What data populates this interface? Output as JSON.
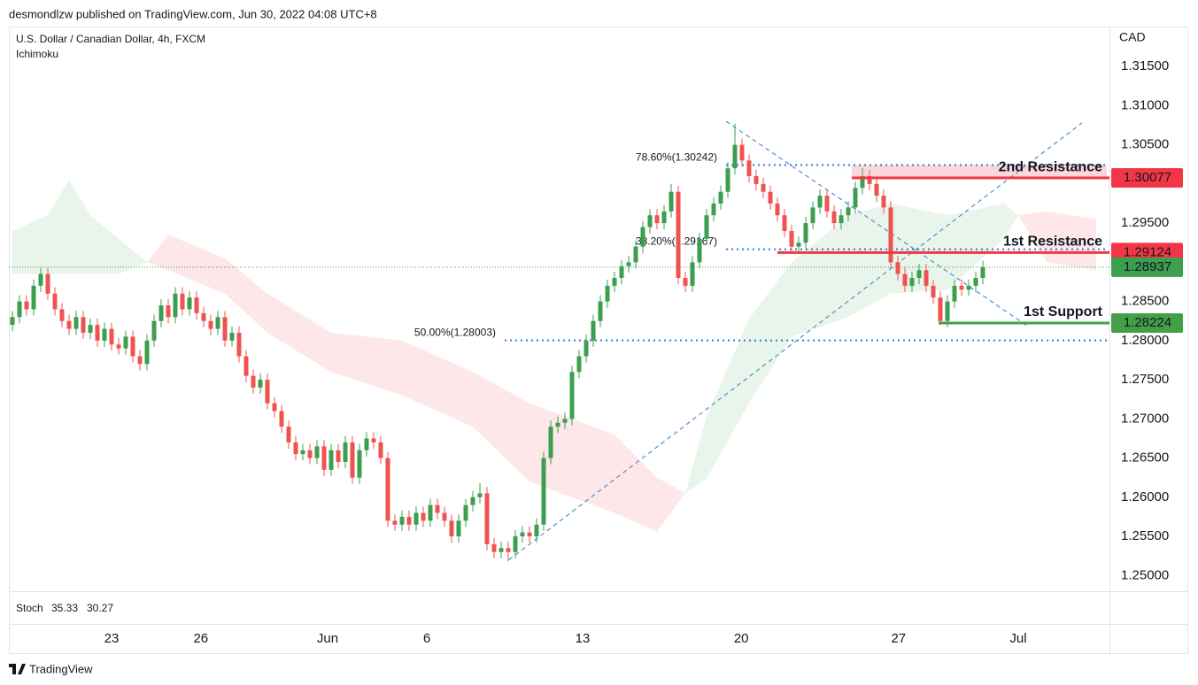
{
  "chart_data": {
    "type": "candlestick",
    "publisher": "desmondlzw published on TradingView.com, Jun 30, 2022 04:08 UTC+8",
    "title": "U.S. Dollar / Canadian Dollar, 4h, FXCM",
    "indicator": "Ichimoku",
    "currency": "CAD",
    "stoch": {
      "label": "Stoch",
      "k": 35.33,
      "d": 30.27,
      "k_color": "#2962ff",
      "d_color": "#ff6d00"
    },
    "brand": "TradingView",
    "up_color": "#3c9e4f",
    "down_color": "#ef5350",
    "grid": false,
    "ylim": [
      1.248,
      1.3201
    ],
    "yticks": [
      {
        "value": 1.25,
        "label": "1.25000"
      },
      {
        "value": 1.255,
        "label": "1.25500"
      },
      {
        "value": 1.26,
        "label": "1.26000"
      },
      {
        "value": 1.265,
        "label": "1.26500"
      },
      {
        "value": 1.27,
        "label": "1.27000"
      },
      {
        "value": 1.275,
        "label": "1.27500"
      },
      {
        "value": 1.28,
        "label": "1.28000"
      },
      {
        "value": 1.285,
        "label": "1.28500"
      },
      {
        "value": 1.29,
        "label": "1.29000"
      },
      {
        "value": 1.295,
        "label": "1.29500"
      },
      {
        "value": 1.3,
        "label": "1.30000"
      },
      {
        "value": 1.305,
        "label": "1.30500"
      },
      {
        "value": 1.31,
        "label": "1.31000"
      },
      {
        "value": 1.315,
        "label": "1.31500"
      }
    ],
    "xticks": [
      {
        "value": 14,
        "label": "23"
      },
      {
        "value": 26.6,
        "label": "26"
      },
      {
        "value": 44.5,
        "label": "Jun"
      },
      {
        "value": 58.5,
        "label": "6"
      },
      {
        "value": 80.5,
        "label": "13"
      },
      {
        "value": 102.9,
        "label": "20"
      },
      {
        "value": 125.1,
        "label": "27"
      },
      {
        "value": 142,
        "label": "Jul"
      }
    ],
    "ohlc": [
      [
        1.282,
        1.2838,
        1.2812,
        1.283
      ],
      [
        1.283,
        1.2858,
        1.2822,
        1.285
      ],
      [
        1.285,
        1.2858,
        1.2832,
        1.284
      ],
      [
        1.284,
        1.2878,
        1.2832,
        1.287
      ],
      [
        1.287,
        1.2893,
        1.2862,
        1.2885
      ],
      [
        1.2885,
        1.2893,
        1.2852,
        1.286
      ],
      [
        1.286,
        1.2868,
        1.2832,
        1.284
      ],
      [
        1.284,
        1.2848,
        1.2817,
        1.2825
      ],
      [
        1.2825,
        1.2833,
        1.2807,
        1.2815
      ],
      [
        1.2815,
        1.2838,
        1.2807,
        1.283
      ],
      [
        1.283,
        1.2838,
        1.2802,
        1.281
      ],
      [
        1.281,
        1.2828,
        1.2802,
        1.282
      ],
      [
        1.282,
        1.2828,
        1.2792,
        1.28
      ],
      [
        1.28,
        1.2823,
        1.2792,
        1.2815
      ],
      [
        1.2815,
        1.2823,
        1.2787,
        1.2795
      ],
      [
        1.2795,
        1.2803,
        1.2782,
        1.279
      ],
      [
        1.279,
        1.2813,
        1.2782,
        1.2805
      ],
      [
        1.2805,
        1.2813,
        1.2772,
        1.278
      ],
      [
        1.278,
        1.2788,
        1.2762,
        1.277
      ],
      [
        1.277,
        1.2808,
        1.2762,
        1.28
      ],
      [
        1.28,
        1.2833,
        1.2792,
        1.2825
      ],
      [
        1.2825,
        1.2853,
        1.2817,
        1.2845
      ],
      [
        1.2845,
        1.2853,
        1.2822,
        1.283
      ],
      [
        1.283,
        1.2868,
        1.2822,
        1.286
      ],
      [
        1.286,
        1.2868,
        1.2832,
        1.284
      ],
      [
        1.284,
        1.2863,
        1.2832,
        1.2855
      ],
      [
        1.2855,
        1.2863,
        1.2827,
        1.2835
      ],
      [
        1.2835,
        1.2843,
        1.2817,
        1.2825
      ],
      [
        1.2825,
        1.2833,
        1.2807,
        1.2815
      ],
      [
        1.2815,
        1.2838,
        1.2807,
        1.283
      ],
      [
        1.283,
        1.2838,
        1.2792,
        1.28
      ],
      [
        1.28,
        1.2818,
        1.2792,
        1.281
      ],
      [
        1.281,
        1.2818,
        1.2772,
        1.278
      ],
      [
        1.278,
        1.2788,
        1.2747,
        1.2755
      ],
      [
        1.2755,
        1.2763,
        1.2732,
        1.274
      ],
      [
        1.274,
        1.2758,
        1.2732,
        1.275
      ],
      [
        1.275,
        1.2758,
        1.2712,
        1.272
      ],
      [
        1.272,
        1.2728,
        1.2702,
        1.271
      ],
      [
        1.271,
        1.2718,
        1.2682,
        1.269
      ],
      [
        1.269,
        1.2698,
        1.2662,
        1.267
      ],
      [
        1.267,
        1.2678,
        1.2647,
        1.2655
      ],
      [
        1.2655,
        1.2668,
        1.2647,
        1.266
      ],
      [
        1.266,
        1.2668,
        1.2642,
        1.265
      ],
      [
        1.265,
        1.2673,
        1.2642,
        1.2665
      ],
      [
        1.2665,
        1.2673,
        1.2627,
        1.2635
      ],
      [
        1.2635,
        1.2668,
        1.2627,
        1.266
      ],
      [
        1.266,
        1.2668,
        1.2637,
        1.2645
      ],
      [
        1.2645,
        1.2678,
        1.2637,
        1.267
      ],
      [
        1.267,
        1.2678,
        1.2617,
        1.2625
      ],
      [
        1.2625,
        1.2668,
        1.2617,
        1.266
      ],
      [
        1.266,
        1.2683,
        1.2652,
        1.2675
      ],
      [
        1.2675,
        1.2683,
        1.2662,
        1.267
      ],
      [
        1.267,
        1.2678,
        1.2642,
        1.265
      ],
      [
        1.265,
        1.2658,
        1.2562,
        1.257
      ],
      [
        1.257,
        1.2578,
        1.2557,
        1.2565
      ],
      [
        1.2565,
        1.2583,
        1.2557,
        1.2575
      ],
      [
        1.2575,
        1.2583,
        1.2557,
        1.2565
      ],
      [
        1.2565,
        1.2588,
        1.2557,
        1.258
      ],
      [
        1.258,
        1.2588,
        1.2562,
        1.257
      ],
      [
        1.257,
        1.2598,
        1.2562,
        1.259
      ],
      [
        1.259,
        1.2598,
        1.2572,
        1.258
      ],
      [
        1.258,
        1.2588,
        1.2562,
        1.257
      ],
      [
        1.257,
        1.2578,
        1.2542,
        1.255
      ],
      [
        1.255,
        1.2578,
        1.2542,
        1.257
      ],
      [
        1.257,
        1.2598,
        1.2562,
        1.259
      ],
      [
        1.259,
        1.2608,
        1.2582,
        1.26
      ],
      [
        1.26,
        1.2618,
        1.2592,
        1.2605
      ],
      [
        1.2605,
        1.2613,
        1.2532,
        1.254
      ],
      [
        1.254,
        1.2548,
        1.2522,
        1.253
      ],
      [
        1.253,
        1.2543,
        1.2522,
        1.2535
      ],
      [
        1.2535,
        1.2543,
        1.2518,
        1.253
      ],
      [
        1.253,
        1.2558,
        1.2522,
        1.255
      ],
      [
        1.255,
        1.2563,
        1.2542,
        1.2555
      ],
      [
        1.2555,
        1.2563,
        1.2542,
        1.255
      ],
      [
        1.255,
        1.2573,
        1.2542,
        1.2565
      ],
      [
        1.2565,
        1.2658,
        1.2557,
        1.265
      ],
      [
        1.265,
        1.2698,
        1.2642,
        1.269
      ],
      [
        1.269,
        1.2703,
        1.2682,
        1.2695
      ],
      [
        1.2695,
        1.2708,
        1.2687,
        1.27
      ],
      [
        1.27,
        1.2768,
        1.2692,
        1.276
      ],
      [
        1.276,
        1.2788,
        1.2752,
        1.278
      ],
      [
        1.278,
        1.2808,
        1.2772,
        1.28
      ],
      [
        1.28,
        1.2833,
        1.2792,
        1.2825
      ],
      [
        1.2825,
        1.2858,
        1.2817,
        1.285
      ],
      [
        1.285,
        1.2878,
        1.2842,
        1.287
      ],
      [
        1.287,
        1.2888,
        1.2862,
        1.288
      ],
      [
        1.288,
        1.2903,
        1.2872,
        1.2895
      ],
      [
        1.2895,
        1.2908,
        1.2887,
        1.29
      ],
      [
        1.29,
        1.2928,
        1.2892,
        1.292
      ],
      [
        1.292,
        1.2953,
        1.2912,
        1.2945
      ],
      [
        1.2945,
        1.2968,
        1.2937,
        1.296
      ],
      [
        1.296,
        1.2968,
        1.2942,
        1.295
      ],
      [
        1.295,
        1.2973,
        1.2942,
        1.2965
      ],
      [
        1.2965,
        1.3,
        1.2957,
        1.299
      ],
      [
        1.299,
        1.2998,
        1.2872,
        1.288
      ],
      [
        1.288,
        1.2888,
        1.2862,
        1.287
      ],
      [
        1.287,
        1.2908,
        1.2862,
        1.29
      ],
      [
        1.29,
        1.2938,
        1.2892,
        1.293
      ],
      [
        1.293,
        1.2968,
        1.2922,
        1.296
      ],
      [
        1.296,
        1.2983,
        1.2952,
        1.2975
      ],
      [
        1.2975,
        1.2998,
        1.2967,
        1.299
      ],
      [
        1.299,
        1.3028,
        1.2982,
        1.302
      ],
      [
        1.302,
        1.3077,
        1.3012,
        1.305
      ],
      [
        1.305,
        1.3058,
        1.3022,
        1.303
      ],
      [
        1.303,
        1.3038,
        1.3002,
        1.301
      ],
      [
        1.301,
        1.3018,
        1.2992,
        1.3
      ],
      [
        1.3,
        1.3008,
        1.2982,
        1.299
      ],
      [
        1.299,
        1.2998,
        1.2967,
        1.2975
      ],
      [
        1.2975,
        1.2983,
        1.2952,
        1.296
      ],
      [
        1.296,
        1.2968,
        1.2932,
        1.294
      ],
      [
        1.294,
        1.2948,
        1.2912,
        1.292
      ],
      [
        1.292,
        1.2933,
        1.2912,
        1.2925
      ],
      [
        1.2925,
        1.2958,
        1.2917,
        1.295
      ],
      [
        1.295,
        1.2978,
        1.2942,
        1.297
      ],
      [
        1.297,
        1.2993,
        1.2962,
        1.2985
      ],
      [
        1.2985,
        1.2993,
        1.2957,
        1.2965
      ],
      [
        1.2965,
        1.2973,
        1.2942,
        1.295
      ],
      [
        1.295,
        1.2968,
        1.2942,
        1.296
      ],
      [
        1.296,
        1.2978,
        1.2952,
        1.297
      ],
      [
        1.297,
        1.3003,
        1.2962,
        1.2995
      ],
      [
        1.2995,
        1.302,
        1.2987,
        1.301
      ],
      [
        1.301,
        1.3018,
        1.2992,
        1.3
      ],
      [
        1.3,
        1.3008,
        1.2977,
        1.2985
      ],
      [
        1.2985,
        1.2993,
        1.2962,
        1.297
      ],
      [
        1.297,
        1.2978,
        1.2892,
        1.29
      ],
      [
        1.29,
        1.2908,
        1.2877,
        1.2885
      ],
      [
        1.2885,
        1.2893,
        1.2862,
        1.287
      ],
      [
        1.287,
        1.2888,
        1.2862,
        1.288
      ],
      [
        1.288,
        1.2898,
        1.2872,
        1.289
      ],
      [
        1.289,
        1.2898,
        1.2862,
        1.287
      ],
      [
        1.287,
        1.2878,
        1.2847,
        1.2855
      ],
      [
        1.2855,
        1.2863,
        1.282,
        1.2825
      ],
      [
        1.2825,
        1.2858,
        1.2817,
        1.285
      ],
      [
        1.285,
        1.2878,
        1.2842,
        1.287
      ],
      [
        1.287,
        1.2878,
        1.2857,
        1.2865
      ],
      [
        1.2865,
        1.2878,
        1.2857,
        1.287
      ],
      [
        1.287,
        1.2888,
        1.2862,
        1.288
      ],
      [
        1.288,
        1.2902,
        1.2872,
        1.28937
      ]
    ],
    "last_label": "1.28937",
    "cloud": {
      "up_color": "rgba(76,175,80,0.12)",
      "down_color": "rgba(242,54,69,0.12)",
      "x": [
        0,
        5,
        8,
        11,
        15,
        19,
        22,
        30,
        36,
        45,
        55,
        65,
        73,
        85,
        91,
        95,
        98,
        104,
        110,
        118,
        124,
        132,
        140,
        142,
        146,
        153
      ],
      "span_a": [
        1.294,
        1.296,
        1.3005,
        1.296,
        1.293,
        1.29,
        1.289,
        1.286,
        1.281,
        1.276,
        1.273,
        1.269,
        1.262,
        1.258,
        1.2556,
        1.2605,
        1.2703,
        1.2828,
        1.29,
        1.296,
        1.2975,
        1.296,
        1.2975,
        1.296,
        1.29,
        1.289
      ],
      "span_b": [
        1.2885,
        1.2885,
        1.2885,
        1.2885,
        1.2885,
        1.29,
        1.2935,
        1.2905,
        1.286,
        1.281,
        1.28,
        1.276,
        1.272,
        1.268,
        1.2625,
        1.2605,
        1.2624,
        1.272,
        1.2805,
        1.283,
        1.286,
        1.2865,
        1.293,
        1.296,
        1.2965,
        1.2955
      ]
    },
    "fib": [
      {
        "label": "78.60%(1.30242)",
        "value": 1.30242,
        "start": 100.75
      },
      {
        "label": "38.20%(1.29167)",
        "value": 1.29167,
        "start": 100.75
      },
      {
        "label": "50.00%(1.28003)",
        "value": 1.28003,
        "start": 69.5
      }
    ],
    "fib_color": "#2a7fd4",
    "zone_color": "rgba(242,54,69,0.2)",
    "levels": [
      {
        "label": "2nd Resistance",
        "value": 1.30077,
        "value_label": "1.30077",
        "color": "#f23645",
        "start": 118.5
      },
      {
        "label": "1st Resistance",
        "value": 1.29124,
        "value_label": "1.29124",
        "color": "#f23645",
        "start": 108
      },
      {
        "label": "1st Support",
        "value": 1.28224,
        "value_label": "1.28224",
        "color": "#43a047",
        "start": 130.75
      }
    ],
    "trendlines": [
      {
        "from": [
          70.1,
          1.252
        ],
        "to": [
          151,
          1.3078
        ]
      },
      {
        "from": [
          100.75,
          1.308
        ],
        "to": [
          143.25,
          1.2819
        ]
      }
    ]
  }
}
